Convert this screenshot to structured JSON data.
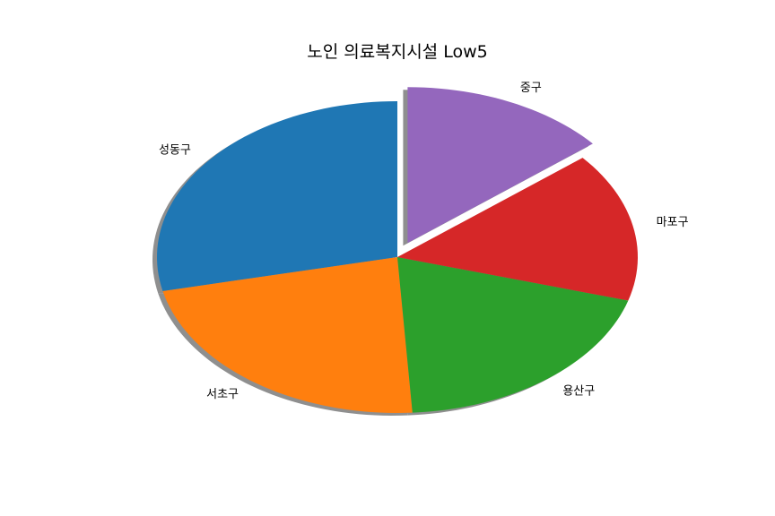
{
  "chart_data": {
    "type": "pie",
    "title": "노인 의료복지시설 Low5",
    "categories": [
      "성동구",
      "서초구",
      "용산구",
      "마포구",
      "중구"
    ],
    "values": [
      28.5,
      22.5,
      19.5,
      15.5,
      14.0
    ],
    "colors": [
      "#1f77b4",
      "#ff7f0e",
      "#2ca02c",
      "#d62728",
      "#9467bd"
    ],
    "explode": [
      0,
      0,
      0,
      0,
      0.1
    ],
    "start_angle_deg": 90,
    "direction": "counterclockwise",
    "shadow": true,
    "shadow_color": "#8f8f8f",
    "legend": "none"
  }
}
